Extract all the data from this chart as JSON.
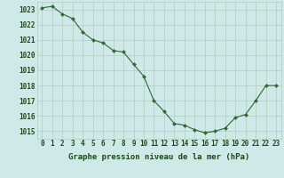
{
  "x": [
    0,
    1,
    2,
    3,
    4,
    5,
    6,
    7,
    8,
    9,
    10,
    11,
    12,
    13,
    14,
    15,
    16,
    17,
    18,
    19,
    20,
    21,
    22,
    23
  ],
  "y": [
    1023.1,
    1023.2,
    1022.7,
    1022.4,
    1021.5,
    1021.0,
    1020.8,
    1020.3,
    1020.2,
    1019.4,
    1018.6,
    1017.0,
    1016.3,
    1015.5,
    1015.4,
    1015.1,
    1014.9,
    1015.0,
    1015.2,
    1015.9,
    1016.1,
    1017.0,
    1018.0,
    1018.0
  ],
  "ylim": [
    1014.5,
    1023.5
  ],
  "yticks": [
    1015,
    1016,
    1017,
    1018,
    1019,
    1020,
    1021,
    1022,
    1023
  ],
  "xticks": [
    0,
    1,
    2,
    3,
    4,
    5,
    6,
    7,
    8,
    9,
    10,
    11,
    12,
    13,
    14,
    15,
    16,
    17,
    18,
    19,
    20,
    21,
    22,
    23
  ],
  "xlabel": "Graphe pression niveau de la mer (hPa)",
  "line_color": "#2d6a2d",
  "marker": "D",
  "marker_size": 2.0,
  "background_color": "#cfe8e8",
  "grid_color": "#b0ccbb",
  "tick_label_color": "#1a4a1a",
  "xlabel_color": "#1a4a1a",
  "xlabel_fontsize": 6.5,
  "tick_fontsize": 5.5
}
